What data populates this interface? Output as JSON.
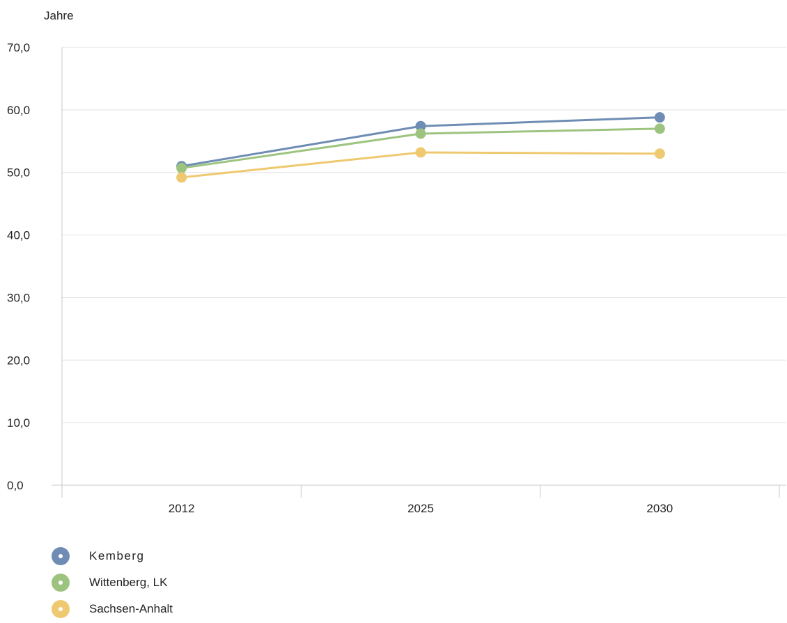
{
  "chart_data": {
    "type": "line",
    "ylabel": "Jahre",
    "categories": [
      "2012",
      "2025",
      "2030"
    ],
    "ylim": [
      0,
      70
    ],
    "yticks": [
      "0,0",
      "10,0",
      "20,0",
      "30,0",
      "40,0",
      "50,0",
      "60,0",
      "70,0"
    ],
    "grid": true,
    "legend_position": "bottom-left",
    "series": [
      {
        "name": "Kemberg",
        "color": "#6f8db4",
        "values": [
          51.0,
          57.4,
          58.8
        ]
      },
      {
        "name": "Wittenberg, LK",
        "color": "#9dc47f",
        "values": [
          50.7,
          56.2,
          57.0
        ]
      },
      {
        "name": "Sachsen-Anhalt",
        "color": "#efc96f",
        "values": [
          49.2,
          53.2,
          53.0
        ]
      }
    ]
  }
}
